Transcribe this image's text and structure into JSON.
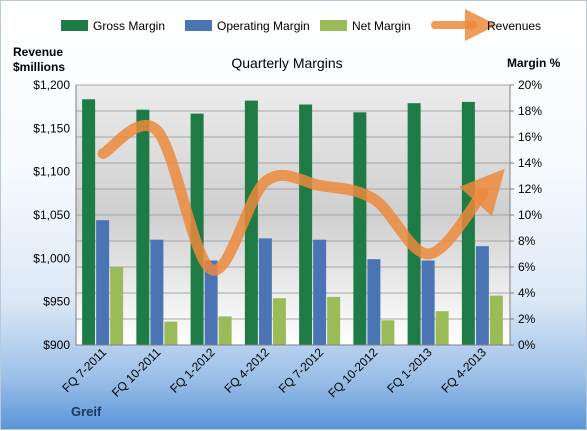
{
  "chart_data": {
    "type": "bar",
    "title": "Quarterly Margins",
    "categories": [
      "FQ 7-2011",
      "FQ 10-2011",
      "FQ 1-2012",
      "FQ 4-2012",
      "FQ 7-2012",
      "FQ 10-2012",
      "FQ 1-2013",
      "FQ 4-2013"
    ],
    "ylabel_left": "Revenue\n$millions",
    "ylabel_right": "Margin %",
    "y_left_ticks": [
      "$900",
      "$950",
      "$1,000",
      "$1,050",
      "$1,100",
      "$1,150",
      "$1,200"
    ],
    "y_right_ticks": [
      "0%",
      "2%",
      "4%",
      "6%",
      "8%",
      "10%",
      "12%",
      "14%",
      "16%",
      "18%",
      "20%"
    ],
    "ylim_left": [
      900,
      1200
    ],
    "ylim_right": [
      0,
      20
    ],
    "grid": true,
    "legend": "top",
    "series": [
      {
        "name": "Gross Margin",
        "axis": "right",
        "kind": "bar",
        "color": "#1e7b45",
        "values": [
          18.9,
          18.1,
          17.8,
          18.8,
          18.5,
          17.9,
          18.6,
          18.7
        ]
      },
      {
        "name": "Operating Margin",
        "axis": "right",
        "kind": "bar",
        "color": "#4a74b4",
        "values": [
          9.6,
          8.1,
          6.5,
          8.2,
          8.1,
          6.6,
          6.5,
          7.6
        ]
      },
      {
        "name": "Net Margin",
        "axis": "right",
        "kind": "bar",
        "color": "#9bbb59",
        "values": [
          6.0,
          1.8,
          2.2,
          3.6,
          3.7,
          1.9,
          2.6,
          3.8
        ]
      },
      {
        "name": "Revenues",
        "axis": "left",
        "kind": "line",
        "color": "#ec8a3c",
        "values": [
          1121,
          1147,
          987,
          1089,
          1084,
          1068,
          1005,
          1075
        ]
      }
    ],
    "footer": "Greif"
  }
}
